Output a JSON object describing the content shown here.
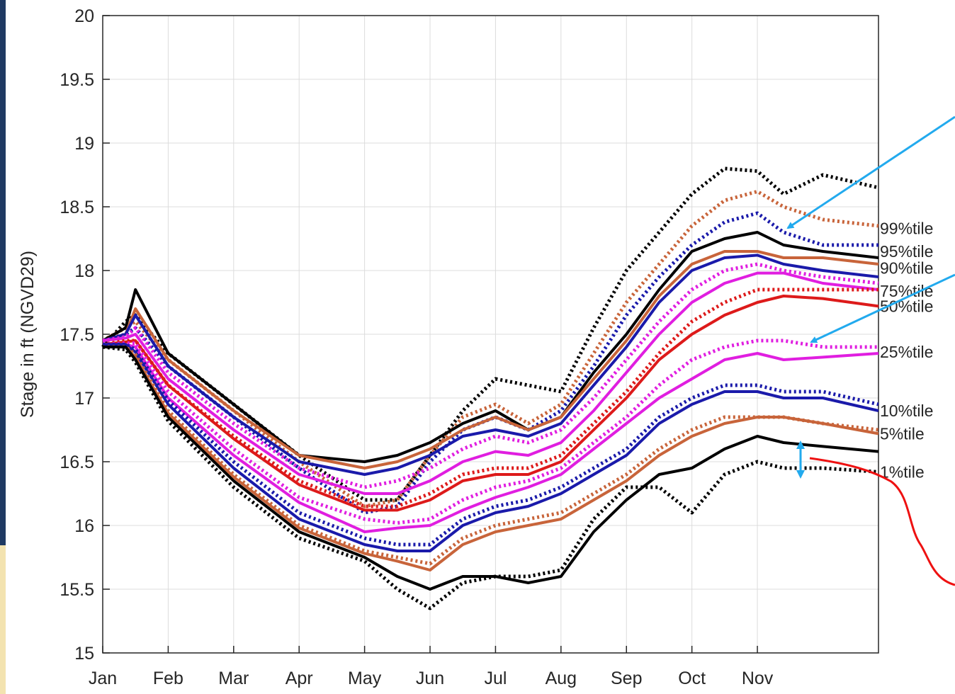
{
  "chart_data": {
    "type": "line",
    "xlabel": "",
    "ylabel": "Stage in ft (NGVD29)",
    "xlim": [
      0,
      11.85
    ],
    "ylim": [
      15,
      20
    ],
    "grid": true,
    "x_tick_labels": [
      "Jan",
      "Feb",
      "Mar",
      "Apr",
      "May",
      "Jun",
      "Jul",
      "Aug",
      "Sep",
      "Oct",
      "Nov"
    ],
    "y_ticks": [
      15,
      15.5,
      16,
      16.5,
      17,
      17.5,
      18,
      18.5,
      19,
      19.5,
      20
    ],
    "y_tick_labels": [
      "15",
      "15.5",
      "16",
      "16.5",
      "17",
      "17.5",
      "18",
      "18.5",
      "19",
      "19.5",
      "20"
    ],
    "x": [
      0,
      0.35,
      0.5,
      1,
      2,
      3,
      4,
      4.5,
      5,
      5.5,
      6,
      6.5,
      7,
      7.5,
      8,
      8.5,
      9,
      9.5,
      10,
      10.4,
      11,
      11.85
    ],
    "series": [
      {
        "style": "dotted",
        "color": "#000000",
        "values": [
          17.4,
          17.6,
          17.65,
          17.35,
          16.95,
          16.55,
          16.2,
          16.2,
          16.55,
          16.9,
          17.15,
          17.1,
          17.05,
          17.55,
          18.0,
          18.3,
          18.6,
          18.8,
          18.78,
          18.6,
          18.75,
          18.65
        ]
      },
      {
        "style": "dotted",
        "color": "#c8643a",
        "values": [
          17.45,
          17.55,
          17.6,
          17.3,
          16.9,
          16.5,
          16.15,
          16.2,
          16.55,
          16.85,
          16.95,
          16.8,
          16.95,
          17.35,
          17.75,
          18.05,
          18.35,
          18.55,
          18.62,
          18.5,
          18.4,
          18.35
        ]
      },
      {
        "style": "dotted",
        "color": "#1a1aaa",
        "values": [
          17.45,
          17.5,
          17.55,
          17.25,
          16.85,
          16.45,
          16.1,
          16.15,
          16.5,
          16.75,
          16.85,
          16.75,
          16.9,
          17.25,
          17.65,
          17.95,
          18.2,
          18.38,
          18.45,
          18.3,
          18.2,
          18.2
        ]
      },
      {
        "style": "solid",
        "color": "#000000",
        "values": [
          17.45,
          17.55,
          17.85,
          17.35,
          16.95,
          16.55,
          16.5,
          16.55,
          16.65,
          16.8,
          16.9,
          16.75,
          16.85,
          17.2,
          17.5,
          17.85,
          18.15,
          18.25,
          18.3,
          18.2,
          18.15,
          18.1
        ]
      },
      {
        "style": "solid",
        "color": "#c8643a",
        "values": [
          17.45,
          17.5,
          17.7,
          17.3,
          16.9,
          16.55,
          16.45,
          16.5,
          16.6,
          16.75,
          16.85,
          16.75,
          16.85,
          17.15,
          17.45,
          17.8,
          18.05,
          18.15,
          18.15,
          18.1,
          18.1,
          18.05
        ]
      },
      {
        "style": "solid",
        "color": "#1a1aaa",
        "values": [
          17.45,
          17.5,
          17.65,
          17.25,
          16.85,
          16.5,
          16.4,
          16.45,
          16.55,
          16.7,
          16.75,
          16.7,
          16.8,
          17.1,
          17.4,
          17.75,
          18.0,
          18.1,
          18.12,
          18.05,
          18.0,
          17.95
        ]
      },
      {
        "style": "dotted",
        "color": "#e01ee0",
        "values": [
          17.45,
          17.48,
          17.55,
          17.2,
          16.8,
          16.45,
          16.3,
          16.35,
          16.45,
          16.6,
          16.7,
          16.65,
          16.75,
          17.0,
          17.3,
          17.6,
          17.85,
          18.0,
          18.05,
          18.0,
          17.95,
          17.9
        ]
      },
      {
        "style": "solid",
        "color": "#e01ee0",
        "values": [
          17.45,
          17.47,
          17.5,
          17.15,
          16.75,
          16.4,
          16.25,
          16.25,
          16.35,
          16.5,
          16.58,
          16.55,
          16.65,
          16.9,
          17.2,
          17.5,
          17.75,
          17.9,
          17.98,
          17.98,
          17.9,
          17.85
        ]
      },
      {
        "style": "dotted",
        "color": "#dd1a1a",
        "values": [
          17.42,
          17.45,
          17.45,
          17.1,
          16.7,
          16.35,
          16.15,
          16.15,
          16.25,
          16.4,
          16.45,
          16.45,
          16.55,
          16.8,
          17.05,
          17.35,
          17.6,
          17.75,
          17.85,
          17.85,
          17.85,
          17.85
        ]
      },
      {
        "style": "solid",
        "color": "#dd1a1a",
        "values": [
          17.42,
          17.44,
          17.45,
          17.1,
          16.68,
          16.32,
          16.12,
          16.12,
          16.2,
          16.35,
          16.4,
          16.4,
          16.5,
          16.75,
          17.0,
          17.3,
          17.5,
          17.65,
          17.75,
          17.8,
          17.78,
          17.72
        ]
      },
      {
        "style": "dotted",
        "color": "#e01ee0",
        "values": [
          17.42,
          17.43,
          17.43,
          17.05,
          16.6,
          16.22,
          16.05,
          16.02,
          16.05,
          16.2,
          16.3,
          16.35,
          16.45,
          16.65,
          16.85,
          17.1,
          17.3,
          17.4,
          17.45,
          17.45,
          17.4,
          17.4
        ]
      },
      {
        "style": "solid",
        "color": "#e01ee0",
        "values": [
          17.42,
          17.42,
          17.4,
          17.0,
          16.55,
          16.18,
          15.95,
          15.98,
          16.0,
          16.12,
          16.22,
          16.3,
          16.4,
          16.6,
          16.8,
          17.0,
          17.15,
          17.3,
          17.35,
          17.3,
          17.32,
          17.35
        ]
      },
      {
        "style": "dotted",
        "color": "#1a1aaa",
        "values": [
          17.42,
          17.42,
          17.38,
          16.98,
          16.5,
          16.1,
          15.9,
          15.85,
          15.85,
          16.05,
          16.15,
          16.2,
          16.3,
          16.45,
          16.6,
          16.85,
          17.0,
          17.1,
          17.1,
          17.05,
          17.05,
          16.95
        ]
      },
      {
        "style": "solid",
        "color": "#1a1aaa",
        "values": [
          17.42,
          17.42,
          17.36,
          16.95,
          16.45,
          16.05,
          15.85,
          15.8,
          15.8,
          16.0,
          16.1,
          16.15,
          16.25,
          16.4,
          16.55,
          16.8,
          16.95,
          17.05,
          17.05,
          17.0,
          17.0,
          16.9
        ]
      },
      {
        "style": "dotted",
        "color": "#c8643a",
        "values": [
          17.4,
          17.4,
          17.34,
          16.9,
          16.4,
          16.0,
          15.8,
          15.75,
          15.7,
          15.9,
          16.0,
          16.05,
          16.1,
          16.25,
          16.4,
          16.6,
          16.75,
          16.85,
          16.85,
          16.85,
          16.8,
          16.75
        ]
      },
      {
        "style": "solid",
        "color": "#c8643a",
        "values": [
          17.4,
          17.4,
          17.32,
          16.88,
          16.38,
          15.98,
          15.78,
          15.72,
          15.65,
          15.85,
          15.95,
          16.0,
          16.05,
          16.2,
          16.35,
          16.55,
          16.7,
          16.8,
          16.85,
          16.85,
          16.8,
          16.72
        ]
      },
      {
        "style": "solid",
        "color": "#000000",
        "values": [
          17.4,
          17.4,
          17.3,
          16.85,
          16.35,
          15.95,
          15.75,
          15.6,
          15.5,
          15.6,
          15.6,
          15.55,
          15.6,
          15.95,
          16.2,
          16.4,
          16.45,
          16.6,
          16.7,
          16.65,
          16.62,
          16.58
        ]
      },
      {
        "style": "dotted",
        "color": "#000000",
        "values": [
          17.4,
          17.38,
          17.28,
          16.82,
          16.3,
          15.9,
          15.72,
          15.5,
          15.35,
          15.55,
          15.6,
          15.6,
          15.65,
          16.05,
          16.3,
          16.3,
          16.1,
          16.4,
          16.5,
          16.45,
          16.45,
          16.42
        ]
      }
    ],
    "percentile_labels": [
      {
        "text": "99%tile",
        "y": 18.33
      },
      {
        "text": "95%tile",
        "y": 18.15
      },
      {
        "text": "90%tile",
        "y": 18.02
      },
      {
        "text": "75%tile",
        "y": 17.84
      },
      {
        "text": "50%tile",
        "y": 17.72
      },
      {
        "text": "25%tile",
        "y": 17.36
      },
      {
        "text": "10%tile",
        "y": 16.9
      },
      {
        "text": "5%tile",
        "y": 16.72
      },
      {
        "text": "1%tile",
        "y": 16.42
      }
    ],
    "annotation_colors": {
      "arrow": "#22aaee",
      "callout": "#ee1111"
    }
  }
}
